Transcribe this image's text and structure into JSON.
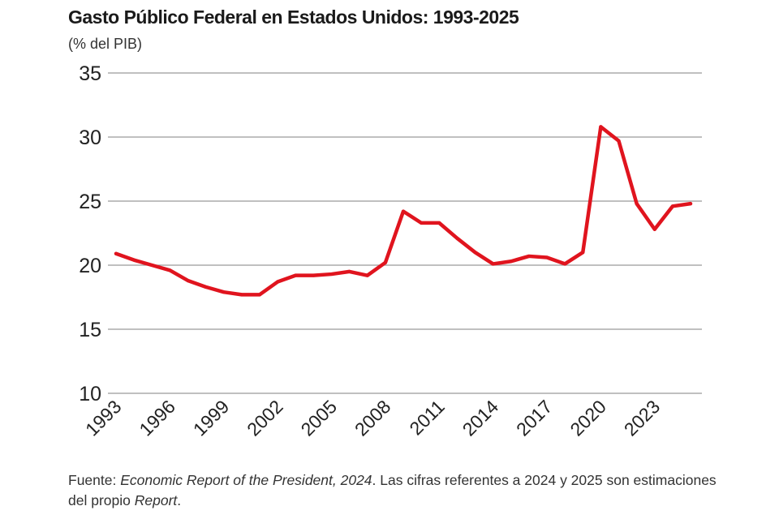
{
  "chart_data": {
    "type": "line",
    "title": "Gasto Público Federal en Estados Unidos: 1993-2025",
    "subtitle": "(% del PIB)",
    "xlabel": "",
    "ylabel": "",
    "ylim": [
      10,
      35
    ],
    "yticks": [
      "35",
      "30",
      "25",
      "20",
      "15",
      "10"
    ],
    "xticks": [
      "1993",
      "1996",
      "1999",
      "2002",
      "2005",
      "2008",
      "2011",
      "2014",
      "2017",
      "2020",
      "2023"
    ],
    "grid": "horizontal",
    "line_color": "#e0141e",
    "x": [
      1993,
      1994,
      1995,
      1996,
      1997,
      1998,
      1999,
      2000,
      2001,
      2002,
      2003,
      2004,
      2005,
      2006,
      2007,
      2008,
      2009,
      2010,
      2011,
      2012,
      2013,
      2014,
      2015,
      2016,
      2017,
      2018,
      2019,
      2020,
      2021,
      2022,
      2023,
      2024,
      2025
    ],
    "values": [
      20.9,
      20.4,
      20.0,
      19.6,
      18.8,
      18.3,
      17.9,
      17.7,
      17.7,
      18.7,
      19.2,
      19.2,
      19.3,
      19.5,
      19.2,
      20.2,
      24.2,
      23.3,
      23.3,
      22.1,
      21.0,
      20.1,
      20.3,
      20.7,
      20.6,
      20.1,
      21.0,
      30.8,
      29.7,
      24.8,
      22.8,
      24.6,
      24.8
    ]
  },
  "footer": {
    "prefix": "Fuente: ",
    "source_italic": "Economic Report of the President, 2024",
    "middle": ". Las cifras referentes a 2024 y 2025 son estimaciones del propio ",
    "report_italic": "Report",
    "suffix": "."
  }
}
